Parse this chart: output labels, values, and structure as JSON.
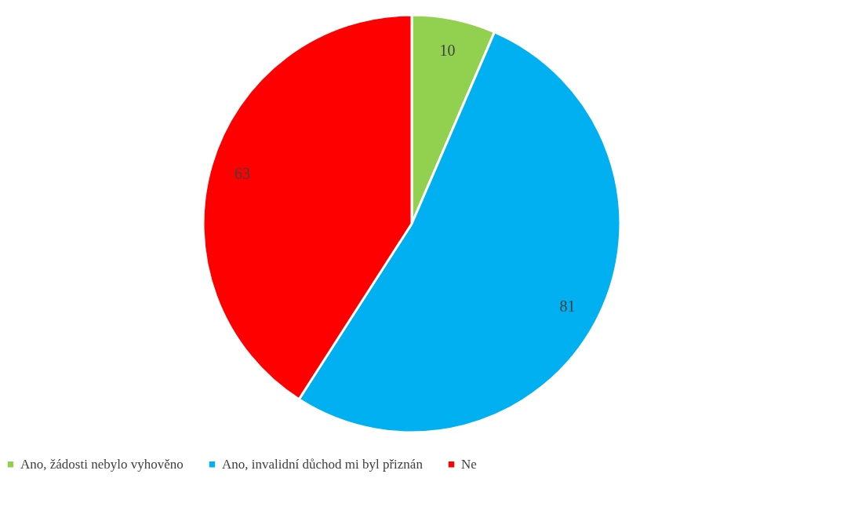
{
  "chart_data": {
    "type": "pie",
    "categories": [
      "Ano, žádosti nebylo vyhověno",
      "Ano, invalidní důchod mi byl přiznán",
      "Ne"
    ],
    "values": [
      10,
      81,
      63
    ],
    "colors": [
      "#92d050",
      "#00b0f0",
      "#ff0000"
    ],
    "data_labels": true,
    "legend": "bottom"
  }
}
